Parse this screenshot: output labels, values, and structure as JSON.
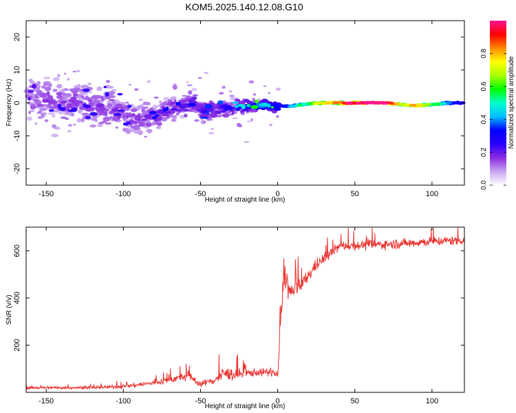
{
  "title": "KOM5.2025.140.12.08.G10",
  "chart_data": [
    {
      "type": "heatmap",
      "xlabel": "Height of straight line (km)",
      "ylabel": "Frequency (Hz)",
      "xlim": [
        -163,
        121
      ],
      "ylim": [
        -25,
        25
      ],
      "xticks": [
        -150,
        -100,
        -50,
        0,
        50,
        100
      ],
      "yticks": [
        -20,
        -10,
        0,
        10,
        20
      ],
      "grid": false,
      "colorbar": {
        "label": "Normalized spectral amplitude",
        "range": [
          0,
          1
        ],
        "ticks": [
          0.0,
          0.2,
          0.4,
          0.6,
          0.8
        ],
        "colors": [
          "#ffffff",
          "#c9a6f2",
          "#8a2be2",
          "#2a00ff",
          "#0000ff",
          "#00bfff",
          "#00ffcc",
          "#00ff00",
          "#aaff00",
          "#ffff00",
          "#ff8800",
          "#ff0000",
          "#ff1493"
        ]
      },
      "ridge": [
        {
          "x": -160,
          "f": 0.5,
          "spread": 6.0,
          "amp": 0.08
        },
        {
          "x": -150,
          "f": 1.0,
          "spread": 6.5,
          "amp": 0.1
        },
        {
          "x": -140,
          "f": 0.0,
          "spread": 6.5,
          "amp": 0.1
        },
        {
          "x": -130,
          "f": 1.0,
          "spread": 6.0,
          "amp": 0.1
        },
        {
          "x": -120,
          "f": -0.5,
          "spread": 6.0,
          "amp": 0.1
        },
        {
          "x": -110,
          "f": -1.0,
          "spread": 6.0,
          "amp": 0.1
        },
        {
          "x": -100,
          "f": -4.0,
          "spread": 5.0,
          "amp": 0.1
        },
        {
          "x": -90,
          "f": -5.0,
          "spread": 4.5,
          "amp": 0.1
        },
        {
          "x": -80,
          "f": -4.0,
          "spread": 4.0,
          "amp": 0.12
        },
        {
          "x": -70,
          "f": -2.0,
          "spread": 3.5,
          "amp": 0.13
        },
        {
          "x": -60,
          "f": -1.0,
          "spread": 3.0,
          "amp": 0.15
        },
        {
          "x": -55,
          "f": 1.0,
          "spread": 3.0,
          "amp": 0.12
        },
        {
          "x": -48,
          "f": -3.0,
          "spread": 3.0,
          "amp": 0.15
        },
        {
          "x": -40,
          "f": -1.5,
          "spread": 2.5,
          "amp": 0.15
        },
        {
          "x": -30,
          "f": -1.5,
          "spread": 2.0,
          "amp": 0.18
        },
        {
          "x": -20,
          "f": -1.0,
          "spread": 1.6,
          "amp": 0.22
        },
        {
          "x": -10,
          "f": -0.5,
          "spread": 1.4,
          "amp": 0.3
        },
        {
          "x": 0,
          "f": -1.0,
          "spread": 1.4,
          "amp": 0.25
        },
        {
          "x": 10,
          "f": -1.0,
          "spread": 1.2,
          "amp": 0.4
        },
        {
          "x": 20,
          "f": -0.3,
          "spread": 1.0,
          "amp": 0.55
        },
        {
          "x": 30,
          "f": 0.0,
          "spread": 1.0,
          "amp": 0.7
        },
        {
          "x": 40,
          "f": 0.0,
          "spread": 1.0,
          "amp": 0.8
        },
        {
          "x": 50,
          "f": 0.0,
          "spread": 1.0,
          "amp": 0.95
        },
        {
          "x": 60,
          "f": 0.0,
          "spread": 1.0,
          "amp": 1.0
        },
        {
          "x": 70,
          "f": 0.0,
          "spread": 1.0,
          "amp": 0.95
        },
        {
          "x": 80,
          "f": -0.5,
          "spread": 1.0,
          "amp": 0.6
        },
        {
          "x": 90,
          "f": -0.8,
          "spread": 1.0,
          "amp": 0.75
        },
        {
          "x": 100,
          "f": -0.5,
          "spread": 1.0,
          "amp": 0.55
        },
        {
          "x": 110,
          "f": 0.0,
          "spread": 1.0,
          "amp": 0.35
        },
        {
          "x": 120,
          "f": 0.0,
          "spread": 1.0,
          "amp": 0.25
        }
      ]
    },
    {
      "type": "line",
      "xlabel": "Height of straight line (km)",
      "ylabel": "SNR (v/v)",
      "xlim": [
        -163,
        121
      ],
      "ylim": [
        0,
        700
      ],
      "xticks": [
        -150,
        -100,
        -50,
        0,
        50,
        100
      ],
      "yticks": [
        200,
        400,
        600
      ],
      "grid": false,
      "series": [
        {
          "color": "#e8332f",
          "envelope": [
            {
              "x": -163,
              "y": 20,
              "noise": 8
            },
            {
              "x": -120,
              "y": 20,
              "noise": 8
            },
            {
              "x": -100,
              "y": 25,
              "noise": 10
            },
            {
              "x": -80,
              "y": 40,
              "noise": 15
            },
            {
              "x": -65,
              "y": 60,
              "noise": 20
            },
            {
              "x": -58,
              "y": 70,
              "noise": 25
            },
            {
              "x": -50,
              "y": 35,
              "noise": 15
            },
            {
              "x": -40,
              "y": 55,
              "noise": 25
            },
            {
              "x": -35,
              "y": 80,
              "noise": 35
            },
            {
              "x": -25,
              "y": 75,
              "noise": 30
            },
            {
              "x": -15,
              "y": 85,
              "noise": 20
            },
            {
              "x": -3,
              "y": 85,
              "noise": 20
            },
            {
              "x": 0,
              "y": 70,
              "noise": 25
            },
            {
              "x": 2,
              "y": 300,
              "noise": 60
            },
            {
              "x": 4,
              "y": 520,
              "noise": 80
            },
            {
              "x": 8,
              "y": 420,
              "noise": 60
            },
            {
              "x": 15,
              "y": 450,
              "noise": 40
            },
            {
              "x": 25,
              "y": 540,
              "noise": 30
            },
            {
              "x": 40,
              "y": 620,
              "noise": 25
            },
            {
              "x": 60,
              "y": 625,
              "noise": 25
            },
            {
              "x": 80,
              "y": 630,
              "noise": 25
            },
            {
              "x": 100,
              "y": 640,
              "noise": 25
            },
            {
              "x": 121,
              "y": 645,
              "noise": 25
            }
          ]
        }
      ]
    }
  ]
}
